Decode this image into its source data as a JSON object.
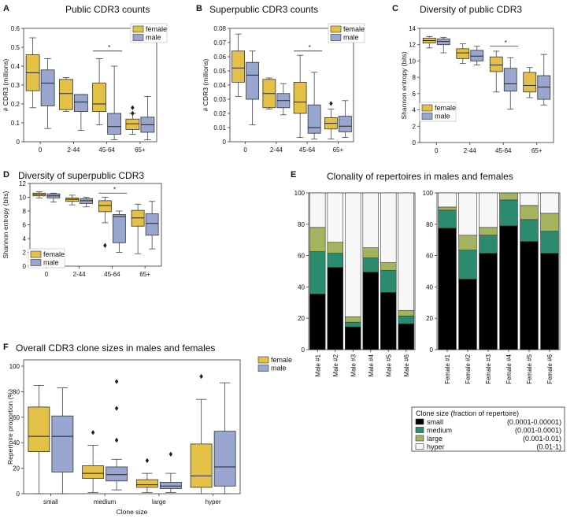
{
  "colors": {
    "female": "#e3c146",
    "male": "#99a6cf",
    "small": "#000000",
    "medium": "#2c8a6e",
    "large": "#a4b35e",
    "hyper": "#f7f7f7",
    "whisker": "#444444"
  },
  "legend": {
    "female": "female",
    "male": "male"
  },
  "chart_data": [
    {
      "panel": "A",
      "type": "box",
      "title": "Public CDR3 counts",
      "ylabel": "# CDR3 (millions)",
      "categories": [
        "0",
        "2-44",
        "45-64",
        "65+"
      ],
      "ylim": [
        0,
        0.6
      ],
      "yticks": [
        "0",
        "0.1",
        "0.2",
        "0.3",
        "0.4",
        "0.5",
        "0.6"
      ],
      "significance": "*",
      "series": [
        {
          "name": "female",
          "boxes": [
            {
              "wlo": 0.18,
              "q1": 0.27,
              "med": 0.365,
              "q3": 0.46,
              "whi": 0.55,
              "fliers": []
            },
            {
              "wlo": 0.16,
              "q1": 0.17,
              "med": 0.255,
              "q3": 0.33,
              "whi": 0.34,
              "fliers": []
            },
            {
              "wlo": 0.09,
              "q1": 0.16,
              "med": 0.2,
              "q3": 0.31,
              "whi": 0.44,
              "fliers": []
            },
            {
              "wlo": 0.04,
              "q1": 0.065,
              "med": 0.095,
              "q3": 0.12,
              "whi": 0.15,
              "fliers": [
                0.15,
                0.18
              ]
            }
          ]
        },
        {
          "name": "male",
          "boxes": [
            {
              "wlo": 0.07,
              "q1": 0.19,
              "med": 0.31,
              "q3": 0.38,
              "whi": 0.44,
              "fliers": []
            },
            {
              "wlo": 0.06,
              "q1": 0.16,
              "med": 0.21,
              "q3": 0.25,
              "whi": 0.25,
              "fliers": []
            },
            {
              "wlo": 0.01,
              "q1": 0.04,
              "med": 0.08,
              "q3": 0.15,
              "whi": 0.4,
              "fliers": []
            },
            {
              "wlo": 0.01,
              "q1": 0.05,
              "med": 0.09,
              "q3": 0.13,
              "whi": 0.24,
              "fliers": []
            }
          ]
        }
      ]
    },
    {
      "panel": "B",
      "type": "box",
      "title": "Superpublic CDR3 counts",
      "ylabel": "# CDR3 (millions)",
      "categories": [
        "0",
        "2-44",
        "45-64",
        "65+"
      ],
      "ylim": [
        0,
        0.08
      ],
      "yticks": [
        "0",
        "0.01",
        "0.02",
        "0.03",
        "0.04",
        "0.05",
        "0.06",
        "0.07",
        "0.08"
      ],
      "significance": "*",
      "series": [
        {
          "name": "female",
          "boxes": [
            {
              "wlo": 0.032,
              "q1": 0.042,
              "med": 0.052,
              "q3": 0.064,
              "whi": 0.076,
              "fliers": []
            },
            {
              "wlo": 0.023,
              "q1": 0.024,
              "med": 0.034,
              "q3": 0.044,
              "whi": 0.045,
              "fliers": []
            },
            {
              "wlo": 0.003,
              "q1": 0.02,
              "med": 0.028,
              "q3": 0.042,
              "whi": 0.061,
              "fliers": []
            },
            {
              "wlo": 0.002,
              "q1": 0.009,
              "med": 0.013,
              "q3": 0.017,
              "whi": 0.023,
              "fliers": [
                0.027
              ]
            }
          ]
        },
        {
          "name": "male",
          "boxes": [
            {
              "wlo": 0.012,
              "q1": 0.03,
              "med": 0.047,
              "q3": 0.056,
              "whi": 0.064,
              "fliers": []
            },
            {
              "wlo": 0.019,
              "q1": 0.024,
              "med": 0.029,
              "q3": 0.034,
              "whi": 0.041,
              "fliers": []
            },
            {
              "wlo": 0.002,
              "q1": 0.006,
              "med": 0.01,
              "q3": 0.026,
              "whi": 0.049,
              "fliers": []
            },
            {
              "wlo": 0.003,
              "q1": 0.007,
              "med": 0.011,
              "q3": 0.018,
              "whi": 0.029,
              "fliers": []
            }
          ]
        }
      ]
    },
    {
      "panel": "C",
      "type": "box",
      "title": "Diversity of public CDR3",
      "ylabel": "Shannon entropy (bits)",
      "categories": [
        "0",
        "2-44",
        "45-64",
        "65+"
      ],
      "ylim": [
        0,
        14
      ],
      "yticks": [
        "0",
        "2",
        "4",
        "6",
        "8",
        "10",
        "12",
        "14"
      ],
      "significance": "*",
      "series": [
        {
          "name": "female",
          "boxes": [
            {
              "wlo": 11.6,
              "q1": 12.2,
              "med": 12.5,
              "q3": 12.8,
              "whi": 13.0,
              "fliers": []
            },
            {
              "wlo": 9.7,
              "q1": 10.3,
              "med": 11.0,
              "q3": 11.5,
              "whi": 12.1,
              "fliers": []
            },
            {
              "wlo": 6.2,
              "q1": 8.7,
              "med": 9.5,
              "q3": 10.5,
              "whi": 11.2,
              "fliers": []
            },
            {
              "wlo": 5.5,
              "q1": 6.2,
              "med": 7.0,
              "q3": 8.6,
              "whi": 9.2,
              "fliers": []
            }
          ]
        },
        {
          "name": "male",
          "boxes": [
            {
              "wlo": 11.0,
              "q1": 12.0,
              "med": 12.4,
              "q3": 12.7,
              "whi": 12.9,
              "fliers": []
            },
            {
              "wlo": 9.5,
              "q1": 10.0,
              "med": 10.6,
              "q3": 11.3,
              "whi": 11.8,
              "fliers": []
            },
            {
              "wlo": 4.1,
              "q1": 6.3,
              "med": 7.2,
              "q3": 9.1,
              "whi": 10.4,
              "fliers": []
            },
            {
              "wlo": 4.6,
              "q1": 5.3,
              "med": 6.8,
              "q3": 8.2,
              "whi": 10.8,
              "fliers": []
            }
          ]
        }
      ]
    },
    {
      "panel": "D",
      "type": "box",
      "title": "Diversity of superpublic CDR3",
      "ylabel": "Shannon entropy (bits)",
      "categories": [
        "0",
        "2-44",
        "45-64",
        "65+"
      ],
      "ylim": [
        0,
        12
      ],
      "yticks": [
        "0",
        "2",
        "4",
        "6",
        "8",
        "10",
        "12"
      ],
      "significance": "*",
      "series": [
        {
          "name": "female",
          "boxes": [
            {
              "wlo": 9.9,
              "q1": 10.2,
              "med": 10.4,
              "q3": 10.6,
              "whi": 10.8,
              "fliers": []
            },
            {
              "wlo": 8.9,
              "q1": 9.4,
              "med": 9.7,
              "q3": 9.9,
              "whi": 10.3,
              "fliers": []
            },
            {
              "wlo": 6.3,
              "q1": 7.9,
              "med": 8.8,
              "q3": 9.5,
              "whi": 10.0,
              "fliers": [
                3.0
              ]
            },
            {
              "wlo": 1.8,
              "q1": 5.8,
              "med": 7.0,
              "q3": 8.1,
              "whi": 9.0,
              "fliers": []
            }
          ]
        },
        {
          "name": "male",
          "boxes": [
            {
              "wlo": 9.3,
              "q1": 9.9,
              "med": 10.2,
              "q3": 10.5,
              "whi": 10.6,
              "fliers": []
            },
            {
              "wlo": 8.6,
              "q1": 9.1,
              "med": 9.5,
              "q3": 9.8,
              "whi": 10.0,
              "fliers": []
            },
            {
              "wlo": 2.0,
              "q1": 3.4,
              "med": 7.2,
              "q3": 7.5,
              "whi": 8.0,
              "fliers": []
            },
            {
              "wlo": 2.5,
              "q1": 4.5,
              "med": 6.2,
              "q3": 7.6,
              "whi": 9.4,
              "fliers": []
            }
          ]
        }
      ]
    },
    {
      "panel": "E",
      "type": "stacked-bar",
      "title": "Clonality of repertoires in males and females",
      "ylim": [
        0,
        100
      ],
      "yticks": [
        "0",
        "20",
        "40",
        "60",
        "80",
        "100"
      ],
      "groups": [
        {
          "name": "male",
          "categories": [
            "Male #1",
            "Male #2",
            "Male #3",
            "Male #4",
            "Male #5",
            "Male #6"
          ],
          "small": [
            35.5,
            52.5,
            14.5,
            49.5,
            36.5,
            16.5
          ],
          "medium": [
            27.0,
            9.0,
            3.0,
            9.0,
            14.0,
            5.0
          ],
          "large": [
            15.5,
            7.0,
            3.5,
            6.5,
            5.0,
            3.5
          ],
          "hyper": [
            22.0,
            31.5,
            79.0,
            35.0,
            44.5,
            75.0
          ]
        },
        {
          "name": "female",
          "categories": [
            "Female #1",
            "Female #2",
            "Female #3",
            "Female #4",
            "Female #5",
            "Female #6"
          ],
          "small": [
            77.5,
            45.0,
            61.5,
            79.0,
            69.0,
            61.5
          ],
          "medium": [
            11.5,
            18.5,
            11.5,
            16.5,
            14.0,
            14.0
          ],
          "large": [
            2.0,
            9.5,
            5.0,
            4.5,
            9.0,
            11.5
          ],
          "hyper": [
            9.0,
            27.0,
            22.0,
            0.0,
            8.0,
            13.0
          ]
        }
      ],
      "legend": {
        "title": "Clone size (fraction of repertoire)",
        "entries": [
          {
            "key": "small",
            "label": "small",
            "range": "(0.0001-0.00001)"
          },
          {
            "key": "medium",
            "label": "medium",
            "range": "(0.001-0.0001)"
          },
          {
            "key": "large",
            "label": "large",
            "range": "(0.001-0.01)"
          },
          {
            "key": "hyper",
            "label": "hyper",
            "range": "(0.01-1)"
          }
        ]
      }
    },
    {
      "panel": "F",
      "type": "box",
      "title": "Overall CDR3 clone sizes in males and females",
      "ylabel": "Repertoire proportion (%)",
      "xlabel": "Clone size",
      "categories": [
        "small",
        "medium",
        "large",
        "hyper"
      ],
      "ylim": [
        0,
        105
      ],
      "yticks": [
        "0",
        "20",
        "40",
        "60",
        "80",
        "100"
      ],
      "series": [
        {
          "name": "female",
          "boxes": [
            {
              "wlo": 0,
              "q1": 33,
              "med": 45,
              "q3": 68,
              "whi": 85,
              "fliers": []
            },
            {
              "wlo": 1,
              "q1": 12,
              "med": 16,
              "q3": 22,
              "whi": 38,
              "fliers": [
                48
              ]
            },
            {
              "wlo": 1,
              "q1": 5,
              "med": 7,
              "q3": 11,
              "whi": 16,
              "fliers": [
                26
              ]
            },
            {
              "wlo": 0,
              "q1": 5,
              "med": 14,
              "q3": 39,
              "whi": 74,
              "fliers": [
                92
              ]
            }
          ]
        },
        {
          "name": "male",
          "boxes": [
            {
              "wlo": 0,
              "q1": 17,
              "med": 45,
              "q3": 61,
              "whi": 83,
              "fliers": []
            },
            {
              "wlo": 3,
              "q1": 10,
              "med": 15,
              "q3": 21,
              "whi": 27,
              "fliers": [
                42,
                67,
                88
              ]
            },
            {
              "wlo": 1,
              "q1": 4,
              "med": 6,
              "q3": 9,
              "whi": 16,
              "fliers": [
                31
              ]
            },
            {
              "wlo": 0,
              "q1": 6,
              "med": 21,
              "q3": 49,
              "whi": 87,
              "fliers": []
            }
          ]
        }
      ]
    }
  ]
}
